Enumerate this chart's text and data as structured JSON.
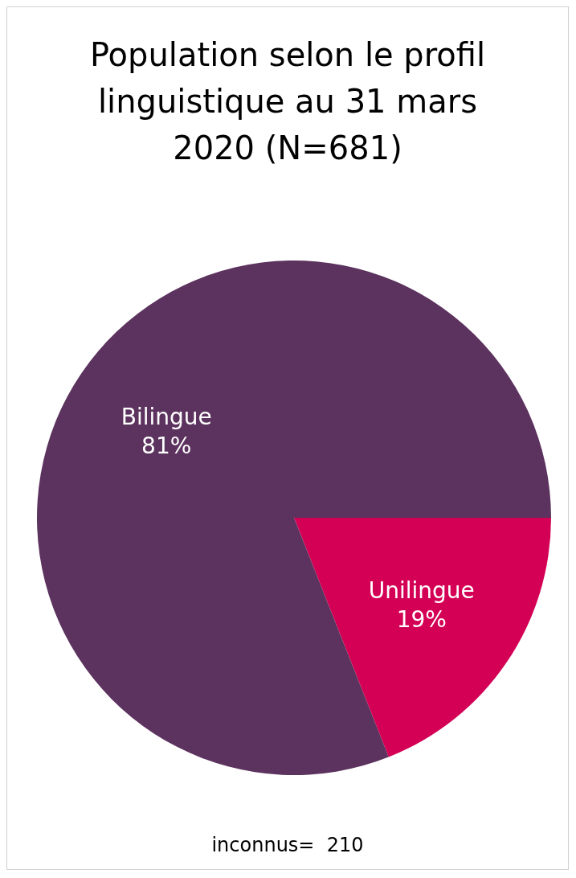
{
  "chart_data": {
    "type": "pie",
    "title": "Population selon le profil linguistique au 31 mars 2020 (N=681)",
    "categories": [
      "Unilingue",
      "Bilingue"
    ],
    "values": [
      19,
      81
    ],
    "value_labels": [
      "19%",
      "81%"
    ],
    "colors": [
      "#d40055",
      "#5c325e"
    ],
    "annotations": [
      "inconnus=  210"
    ]
  }
}
